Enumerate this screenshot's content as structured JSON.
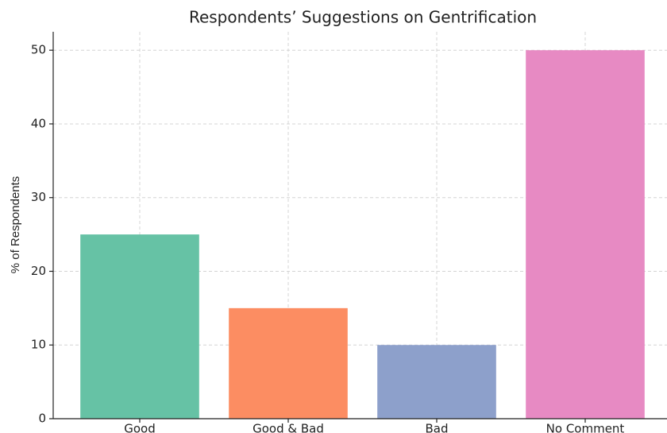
{
  "chart_data": {
    "type": "bar",
    "title": "Respondents’ Suggestions on Gentrification",
    "ylabel": "% of Respondents",
    "categories": [
      "Good",
      "Good & Bad",
      "Bad",
      "No Comment"
    ],
    "values": [
      25,
      15,
      10,
      50
    ],
    "colors": [
      "#66c2a5",
      "#fc8d62",
      "#8da0cb",
      "#e78ac3"
    ],
    "ylim": [
      0,
      52.5
    ],
    "yticks": [
      0,
      10,
      20,
      30,
      40,
      50
    ],
    "grid": true
  }
}
